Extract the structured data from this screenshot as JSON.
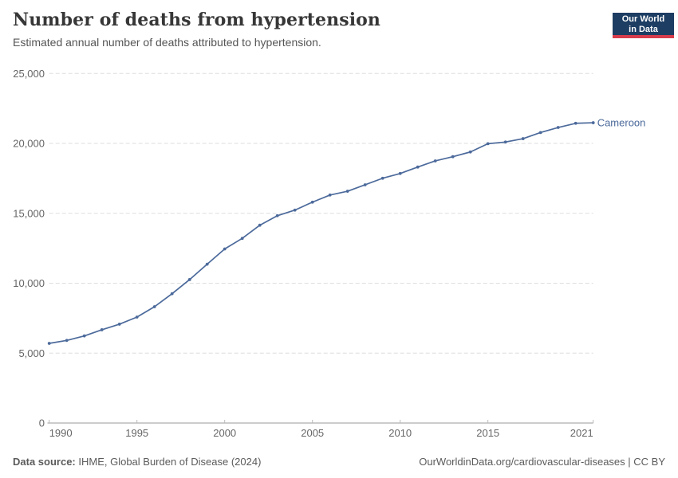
{
  "header": {
    "title": "Number of deaths from hypertension",
    "subtitle": "Estimated annual number of deaths attributed to hypertension.",
    "logo": {
      "line1": "Our World",
      "line2": "in Data",
      "bg_color": "#1d3d63",
      "accent_color": "#d73c4c"
    }
  },
  "chart_data": {
    "type": "line",
    "title": "Number of deaths from hypertension",
    "subtitle": "Estimated annual number of deaths attributed to hypertension.",
    "entity_label": "Cameroon",
    "xlabel": "",
    "ylabel": "",
    "xlim": [
      1990,
      2021
    ],
    "ylim": [
      0,
      25000
    ],
    "grid": "horizontal-dashed",
    "legend_position": "end-of-line",
    "x": [
      1990,
      1991,
      1992,
      1993,
      1994,
      1995,
      1996,
      1997,
      1998,
      1999,
      2000,
      2001,
      2002,
      2003,
      2004,
      2005,
      2006,
      2007,
      2008,
      2009,
      2010,
      2011,
      2012,
      2013,
      2014,
      2015,
      2016,
      2017,
      2018,
      2019,
      2020,
      2021
    ],
    "series": [
      {
        "name": "Cameroon",
        "values": [
          5700,
          5910,
          6230,
          6670,
          7070,
          7580,
          8320,
          9250,
          10260,
          11360,
          12450,
          13210,
          14150,
          14830,
          15230,
          15800,
          16310,
          16580,
          17040,
          17510,
          17850,
          18310,
          18750,
          19050,
          19390,
          19980,
          20100,
          20340,
          20780,
          21140,
          21440,
          21480
        ]
      }
    ],
    "y_ticks": [
      {
        "value": 0,
        "label": "0"
      },
      {
        "value": 5000,
        "label": "5,000"
      },
      {
        "value": 10000,
        "label": "10,000"
      },
      {
        "value": 15000,
        "label": "15,000"
      },
      {
        "value": 20000,
        "label": "20,000"
      },
      {
        "value": 25000,
        "label": "25,000"
      }
    ],
    "x_ticks": [
      {
        "year": 1990,
        "label": "1990",
        "anchor": "start"
      },
      {
        "year": 1995,
        "label": "1995",
        "anchor": "middle"
      },
      {
        "year": 2000,
        "label": "2000",
        "anchor": "middle"
      },
      {
        "year": 2005,
        "label": "2005",
        "anchor": "middle"
      },
      {
        "year": 2010,
        "label": "2010",
        "anchor": "middle"
      },
      {
        "year": 2015,
        "label": "2015",
        "anchor": "middle"
      },
      {
        "year": 2021,
        "label": "2021",
        "anchor": "end"
      }
    ],
    "colors": {
      "line": "#4c6a9b",
      "entity_label": "#4c6a9b",
      "gridline": "#dddddd",
      "axis_line": "#9a9a9a",
      "tick_mark": "#bbbbbb",
      "axis_text": "#666666"
    }
  },
  "footer": {
    "source_label": "Data source:",
    "source_text": " IHME, Global Burden of Disease (2024)",
    "right_text": "OurWorldinData.org/cardiovascular-diseases | CC BY"
  }
}
